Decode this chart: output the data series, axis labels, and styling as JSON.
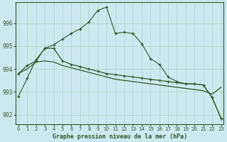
{
  "title": "Graphe pression niveau de la mer (hPa)",
  "background_color": "#cde9f0",
  "grid_color": "#a8d5c2",
  "line_color": "#2d5a27",
  "xlim": [
    -0.3,
    23.3
  ],
  "ylim": [
    991.6,
    996.9
  ],
  "yticks": [
    992,
    993,
    994,
    995,
    996
  ],
  "xticks": [
    0,
    1,
    2,
    3,
    4,
    5,
    6,
    7,
    8,
    9,
    10,
    11,
    12,
    13,
    14,
    15,
    16,
    17,
    18,
    19,
    20,
    21,
    22,
    23
  ],
  "series1": [
    992.8,
    993.6,
    994.4,
    994.9,
    995.05,
    995.3,
    995.55,
    995.75,
    996.05,
    996.55,
    996.7,
    995.55,
    995.6,
    995.55,
    995.1,
    994.45,
    994.2,
    993.65,
    993.45,
    993.35,
    993.35,
    993.3,
    992.75,
    991.85
  ],
  "series2": [
    993.8,
    994.15,
    994.35,
    994.9,
    994.9,
    994.35,
    994.2,
    994.1,
    994.0,
    993.9,
    993.8,
    993.75,
    993.7,
    993.65,
    993.6,
    993.55,
    993.5,
    993.45,
    993.4,
    993.35,
    993.35,
    993.3,
    992.75,
    991.85
  ],
  "series3": [
    993.8,
    994.0,
    994.3,
    994.35,
    994.3,
    994.15,
    994.05,
    993.95,
    993.85,
    993.75,
    993.65,
    993.55,
    993.5,
    993.45,
    993.4,
    993.35,
    993.3,
    993.25,
    993.2,
    993.15,
    993.1,
    993.05,
    992.9,
    993.2
  ]
}
